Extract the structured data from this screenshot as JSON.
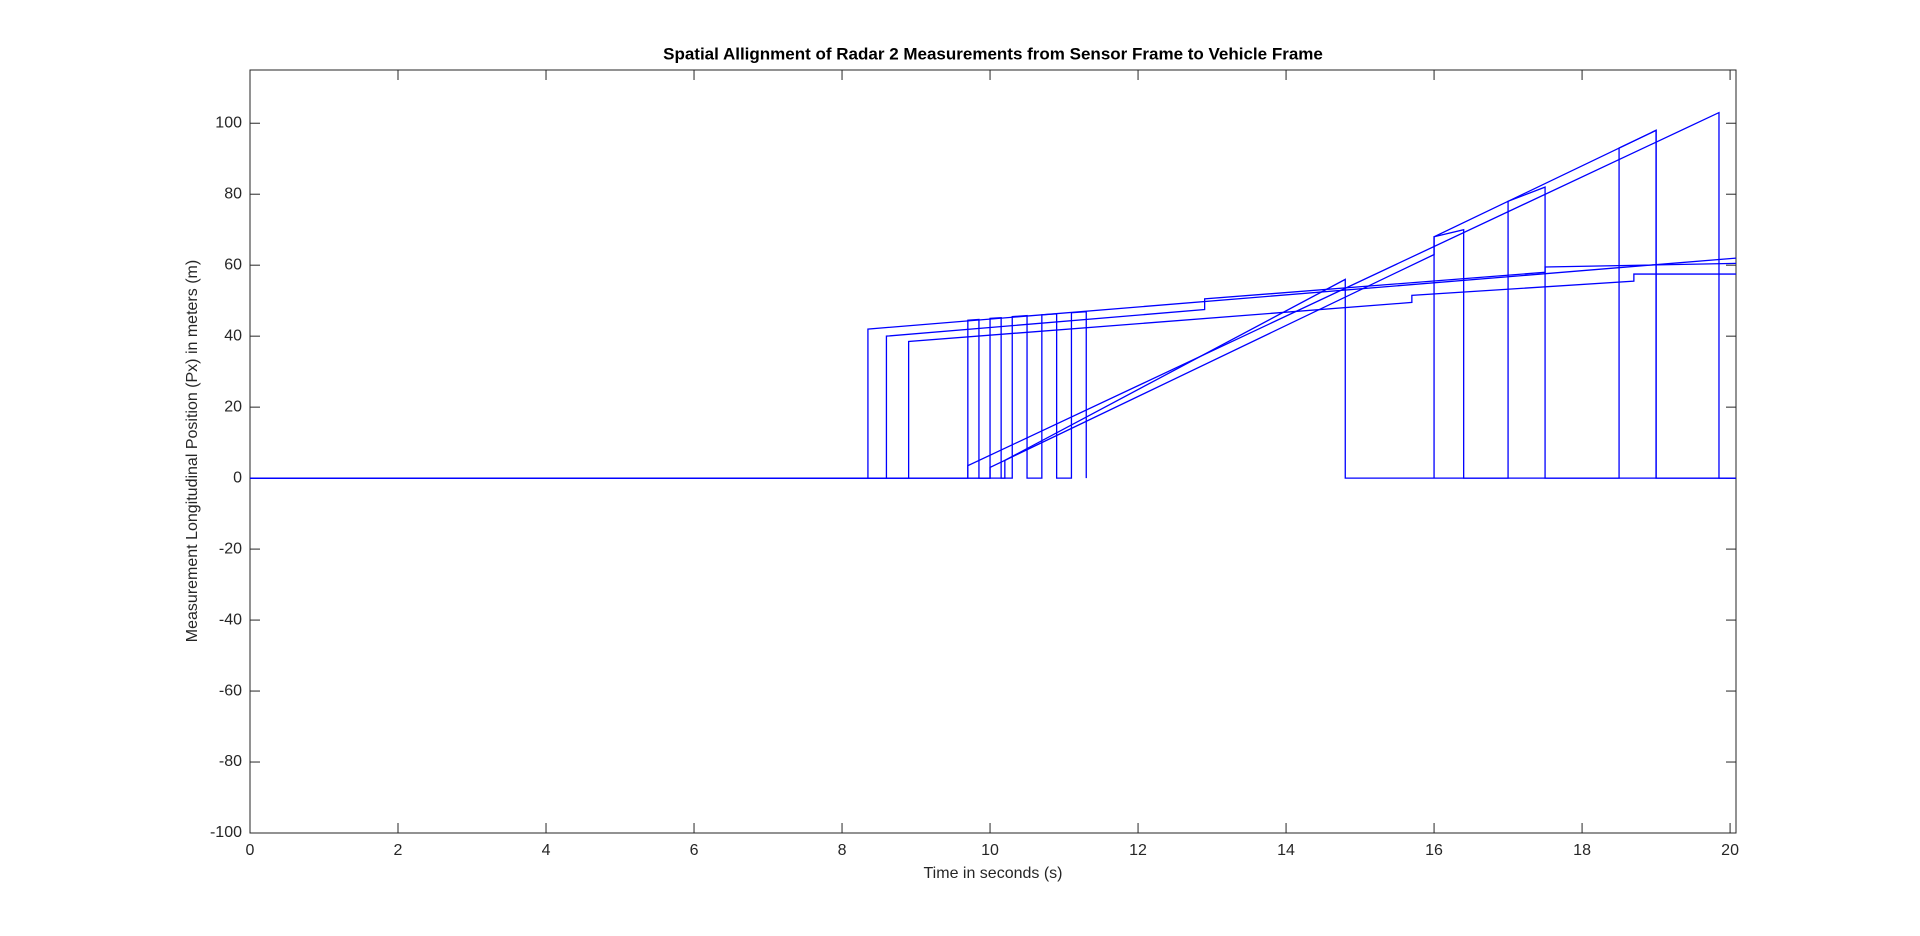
{
  "chart_data": {
    "type": "line",
    "title": "Spatial Allignment of Radar 2 Measurements from Sensor Frame to Vehicle Frame",
    "xlabel": "Time in seconds (s)",
    "ylabel": "Measurement Longitudinal Position (Px) in meters (m)",
    "xlim": [
      0,
      20.08
    ],
    "ylim": [
      -100,
      115
    ],
    "xticks": [
      0,
      2,
      4,
      6,
      8,
      10,
      12,
      14,
      16,
      18,
      20
    ],
    "yticks": [
      -100,
      -80,
      -60,
      -40,
      -20,
      0,
      20,
      40,
      60,
      80,
      100
    ],
    "grid": false,
    "series": [
      {
        "color": "#0000ff",
        "x": [
          0,
          8.35,
          8.35,
          20.08
        ],
        "values": [
          0,
          0,
          42,
          62
        ]
      },
      {
        "color": "#0000ff",
        "x": [
          0,
          8.6,
          8.6,
          12.9,
          12.9,
          17.5,
          17.5,
          20.08
        ],
        "values": [
          0,
          0,
          40,
          47.5,
          50.5,
          58,
          59.5,
          60.5
        ]
      },
      {
        "color": "#0000ff",
        "x": [
          0,
          8.9,
          8.9,
          15.7,
          15.7,
          18.7,
          18.7,
          20.08
        ],
        "values": [
          0,
          0,
          38.5,
          49.5,
          51.5,
          55.5,
          57.5,
          57.5
        ]
      },
      {
        "color": "#0000ff",
        "x": [
          0,
          9.7,
          9.7,
          19.85,
          19.85,
          20.08
        ],
        "values": [
          0,
          0,
          3.5,
          103,
          0,
          0
        ]
      },
      {
        "color": "#0000ff",
        "x": [
          0,
          10.0,
          10.0,
          16.0,
          16.0,
          19.0,
          19.0,
          20.08
        ],
        "values": [
          0,
          0,
          3,
          63,
          68,
          98,
          0,
          0
        ]
      },
      {
        "color": "#0000ff",
        "x": [
          0,
          10.2,
          10.2,
          14.8,
          14.8,
          20.08
        ],
        "values": [
          0,
          0,
          5,
          56,
          0,
          0
        ]
      },
      {
        "color": "#0000ff",
        "x": [
          9.7,
          9.7,
          9.85,
          9.85,
          10.0,
          10.0,
          10.15,
          10.15,
          10.3,
          10.3,
          10.5,
          10.5,
          10.7,
          10.7,
          10.9,
          10.9,
          11.1,
          11.1,
          11.3,
          11.3
        ],
        "values": [
          0,
          44.5,
          44.7,
          0,
          0,
          45,
          45.2,
          0,
          0,
          45.5,
          45.8,
          0,
          0,
          46,
          46.3,
          0,
          0,
          46.6,
          46.9,
          0
        ]
      },
      {
        "color": "#0000ff",
        "x": [
          16,
          16,
          16.4,
          16.4,
          17,
          17,
          17.5,
          17.5,
          18.5,
          18.5,
          19,
          19
        ],
        "values": [
          0,
          68,
          70,
          0,
          0,
          78,
          82,
          0,
          0,
          93,
          98,
          0
        ]
      }
    ]
  }
}
